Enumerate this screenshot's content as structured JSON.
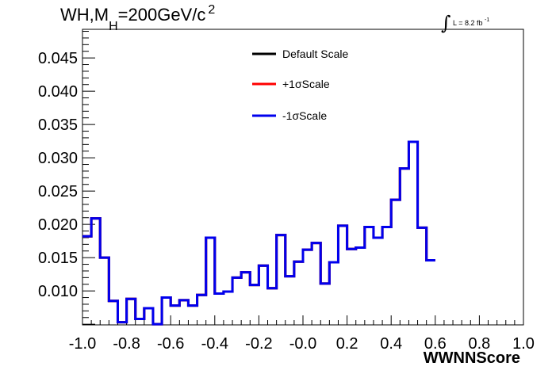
{
  "title": {
    "main": "WH,M",
    "sub": "H",
    "rest": "=200GeV/c",
    "sup": "2"
  },
  "lumi": {
    "integral": "∫",
    "text": "L = 8.2 fb",
    "sup": "-1"
  },
  "colors": {
    "default_scale": "#000000",
    "plus1sigma": "#ff0000",
    "minus1sigma": "#0000ee"
  },
  "chart_data": {
    "type": "histogram",
    "xlabel": "WWNNScore",
    "ylabel": "",
    "xlim": [
      -1.0,
      1.0
    ],
    "ylim": [
      0.0049,
      0.0493
    ],
    "xticks": [
      "-1.0",
      "-0.8",
      "-0.6",
      "-0.4",
      "-0.2",
      "-0.0",
      "0.2",
      "0.4",
      "0.6",
      "0.8",
      "1.0"
    ],
    "yticks": [
      "0.010",
      "0.015",
      "0.020",
      "0.025",
      "0.030",
      "0.035",
      "0.040",
      "0.045"
    ],
    "bin_edges_start": -1.0,
    "bin_width": 0.04,
    "legend_position": "top-center",
    "series": [
      {
        "name": "Default Scale",
        "color": "#000000",
        "values": [
          0.0182,
          0.0209,
          0.015,
          0.0085,
          0.0053,
          0.0088,
          0.0058,
          0.0074,
          0.005,
          0.009,
          0.0078,
          0.0086,
          0.0078,
          0.0094,
          0.018,
          0.0096,
          0.0099,
          0.012,
          0.0128,
          0.0109,
          0.0138,
          0.0104,
          0.0184,
          0.0122,
          0.0144,
          0.0162,
          0.0172,
          0.0111,
          0.0143,
          0.0198,
          0.0163,
          0.0165,
          0.0196,
          0.018,
          0.0196,
          0.0237,
          0.0284,
          0.0324,
          0.0195,
          0.0146
        ]
      },
      {
        "name": "+1σScale",
        "color": "#ff0000",
        "values": [
          0.0182,
          0.0209,
          0.015,
          0.0085,
          0.0053,
          0.0088,
          0.0058,
          0.0074,
          0.005,
          0.009,
          0.0078,
          0.0086,
          0.0078,
          0.0094,
          0.018,
          0.0096,
          0.0099,
          0.012,
          0.0128,
          0.0109,
          0.0138,
          0.0104,
          0.0184,
          0.0122,
          0.0144,
          0.0162,
          0.0172,
          0.0111,
          0.0143,
          0.0198,
          0.0163,
          0.0165,
          0.0196,
          0.018,
          0.0196,
          0.0237,
          0.0284,
          0.0324,
          0.0195,
          0.0146
        ]
      },
      {
        "name": "-1σScale",
        "color": "#0000ee",
        "values": [
          0.0182,
          0.0209,
          0.015,
          0.0085,
          0.0053,
          0.0088,
          0.0058,
          0.0074,
          0.005,
          0.009,
          0.0078,
          0.0086,
          0.0078,
          0.0094,
          0.018,
          0.0096,
          0.0099,
          0.012,
          0.0128,
          0.0109,
          0.0138,
          0.0104,
          0.0184,
          0.0122,
          0.0144,
          0.0162,
          0.0172,
          0.0111,
          0.0143,
          0.0198,
          0.0163,
          0.0165,
          0.0196,
          0.018,
          0.0196,
          0.0237,
          0.0284,
          0.0324,
          0.0195,
          0.0146
        ]
      }
    ]
  }
}
